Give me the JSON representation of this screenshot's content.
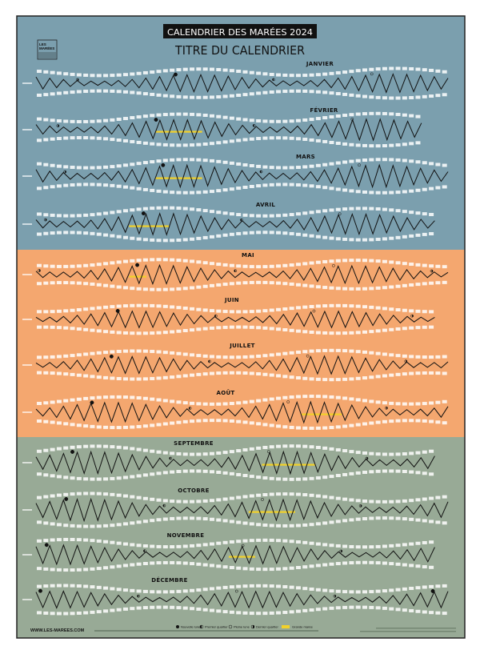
{
  "header": {
    "banner": "CALENDRIER DES MARÉES 2024",
    "title": "TITRE DU CALENDRIER",
    "logo": "LES MARÉES"
  },
  "colors": {
    "winter_spring": "#7b9fae",
    "summer": "#f4a76f",
    "autumn": "#98aa96",
    "wave": "#111111",
    "grande_maree": "#f2d12a",
    "labels": "#ffffff"
  },
  "months": [
    {
      "name": "JANVIER",
      "days": 31,
      "grandes_marees": []
    },
    {
      "name": "FÉVRIER",
      "days": 29,
      "grandes_marees": [
        [
          10,
          13.5
        ]
      ]
    },
    {
      "name": "MARS",
      "days": 31,
      "grandes_marees": [
        [
          10,
          13.5
        ]
      ]
    },
    {
      "name": "AVRIL",
      "days": 30,
      "grandes_marees": [
        [
          8,
          11
        ]
      ]
    },
    {
      "name": "MAI",
      "days": 31,
      "grandes_marees": [
        [
          8,
          9.3
        ]
      ]
    },
    {
      "name": "JUIN",
      "days": 30,
      "grandes_marees": []
    },
    {
      "name": "JUILLET",
      "days": 31,
      "grandes_marees": []
    },
    {
      "name": "AOÛT",
      "days": 31,
      "grandes_marees": [
        [
          21,
          24
        ]
      ]
    },
    {
      "name": "SEPTEMBRE",
      "days": 30,
      "grandes_marees": [
        [
          18,
          22
        ]
      ]
    },
    {
      "name": "OCTOBRE",
      "days": 31,
      "grandes_marees": [
        [
          17,
          20.5
        ]
      ]
    },
    {
      "name": "NOVEMBRE",
      "days": 30,
      "grandes_marees": [
        [
          15.5,
          17.5
        ]
      ]
    },
    {
      "name": "DÉCEMBRE",
      "days": 31,
      "grandes_marees": []
    }
  ],
  "legend": {
    "new_moon": "Nouvelle lune",
    "first_quarter": "Premier quartier",
    "full_moon": "Pleine lune",
    "last_quarter": "Dernier quartier",
    "grande_maree": "Grande marée"
  },
  "footer": {
    "website": "WWW.LES-MAREES.COM"
  }
}
